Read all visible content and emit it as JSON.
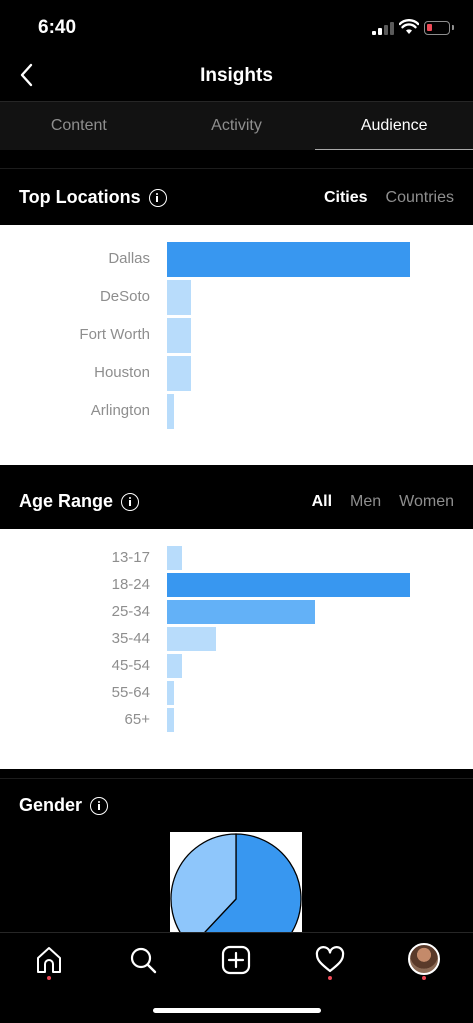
{
  "status_bar": {
    "time": "6:40"
  },
  "header": {
    "title": "Insights"
  },
  "tabs": [
    {
      "label": "Content",
      "active": false
    },
    {
      "label": "Activity",
      "active": false
    },
    {
      "label": "Audience",
      "active": true
    }
  ],
  "top_locations": {
    "title": "Top Locations",
    "filters": [
      {
        "label": "Cities",
        "active": true
      },
      {
        "label": "Countries",
        "active": false
      }
    ]
  },
  "age_range": {
    "title": "Age Range",
    "filters": [
      {
        "label": "All",
        "active": true
      },
      {
        "label": "Men",
        "active": false
      },
      {
        "label": "Women",
        "active": false
      }
    ]
  },
  "gender": {
    "title": "Gender"
  },
  "colors": {
    "bar_dark": "#3897f0",
    "bar_mid": "#63b1f7",
    "bar_light": "#b8dcfb",
    "notification_dot": "#ed4956",
    "battery_low": "#ed4956"
  },
  "chart_data": [
    {
      "type": "bar",
      "orientation": "horizontal",
      "categories": [
        "Dallas",
        "DeSoto",
        "Fort Worth",
        "Houston",
        "Arlington"
      ],
      "values": [
        100,
        10,
        10,
        10,
        3
      ],
      "xlim": [
        0,
        100
      ]
    },
    {
      "type": "bar",
      "orientation": "horizontal",
      "categories": [
        "13-17",
        "18-24",
        "25-34",
        "35-44",
        "45-54",
        "55-64",
        "65+"
      ],
      "values": [
        6,
        100,
        61,
        20,
        6,
        2,
        2
      ],
      "xlim": [
        0,
        100
      ]
    },
    {
      "type": "pie",
      "values": [
        62,
        38
      ]
    }
  ],
  "bottom_nav": [
    {
      "icon": "home-icon",
      "notification": true
    },
    {
      "icon": "search-icon",
      "notification": false
    },
    {
      "icon": "add-post-icon",
      "notification": false
    },
    {
      "icon": "heart-icon",
      "notification": true
    },
    {
      "icon": "profile-avatar",
      "notification": true
    }
  ]
}
